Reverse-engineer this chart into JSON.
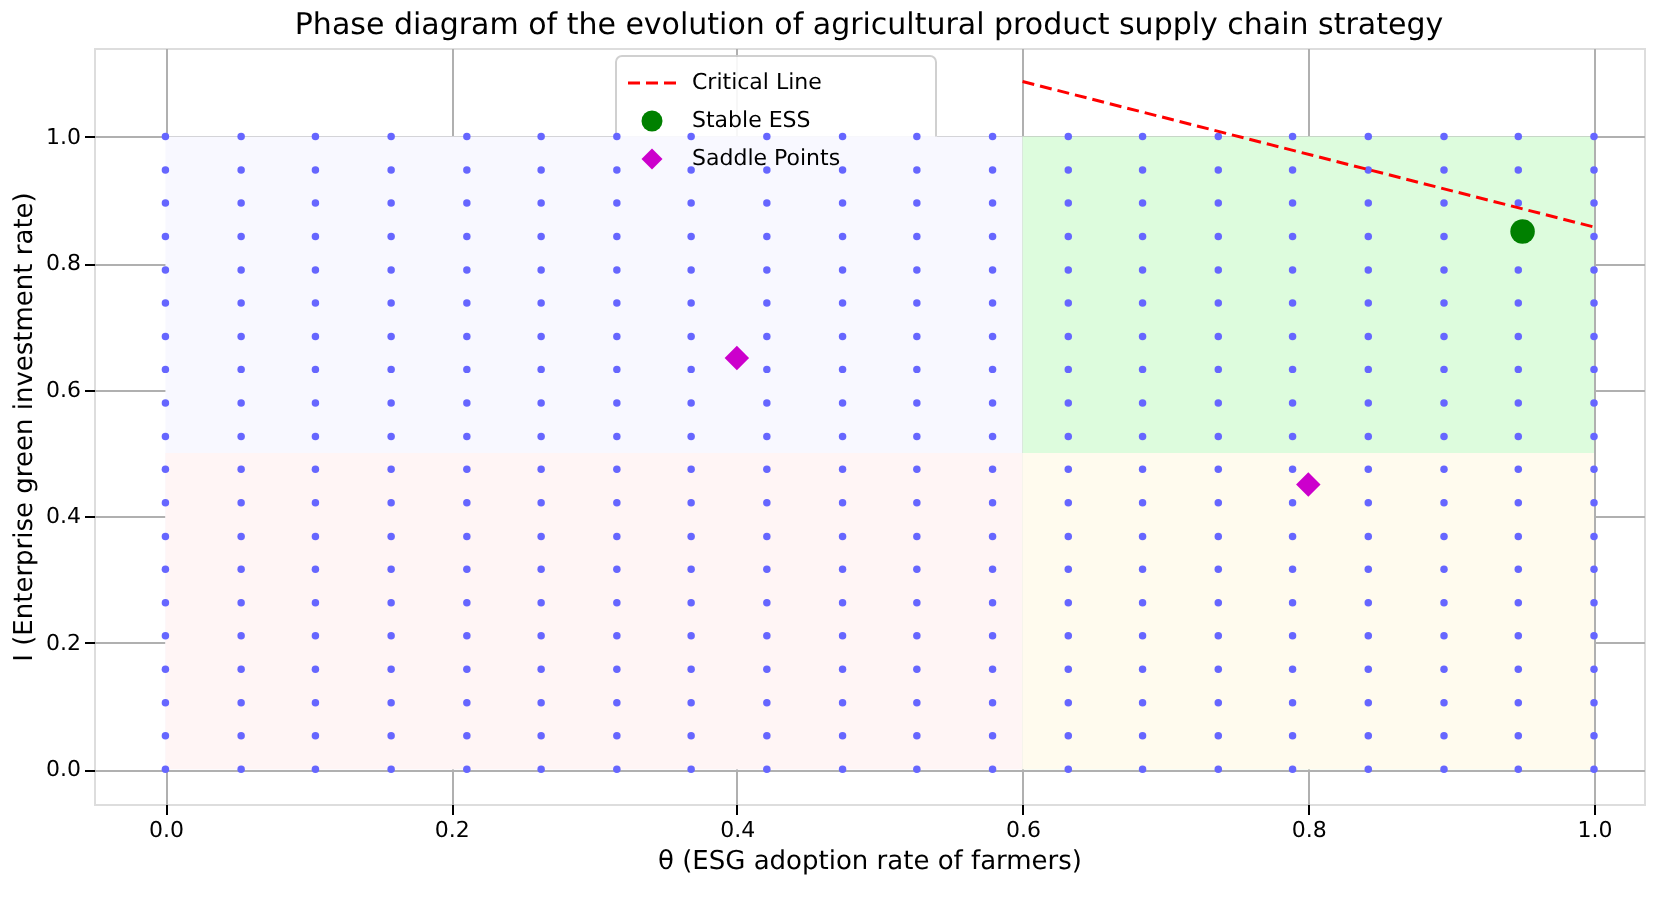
{
  "chart_data": {
    "type": "scatter",
    "title": "Phase diagram of the evolution of agricultural product supply chain strategy",
    "xlabel": "θ (ESG adoption rate of farmers)",
    "ylabel": "I (Enterprise green investment rate)",
    "xlim": [
      -0.05,
      1.035
    ],
    "ylim": [
      -0.055,
      1.14
    ],
    "xticks": [
      {
        "value": 0,
        "label": "0.0"
      },
      0.2,
      0.4,
      0.6,
      0.8,
      {
        "value": 1,
        "label": "1.0"
      }
    ],
    "yticks": [
      {
        "value": 0,
        "label": "0.0"
      },
      0.2,
      0.4,
      0.6,
      0.8,
      {
        "value": 1,
        "label": "1.0"
      }
    ],
    "grid": true,
    "legend": "top",
    "x": [
      0,
      0.053,
      0.105,
      0.158,
      0.211,
      0.263,
      0.316,
      0.368,
      0.421,
      0.474,
      0.526,
      0.579,
      0.632,
      0.684,
      0.737,
      0.789,
      0.842,
      0.895,
      0.947,
      1.0
    ],
    "series": [
      {
        "type": "area",
        "color": "#f8f8ff",
        "x": [
          0,
          0.6
        ],
        "values": [
          1,
          1
        ]
      },
      {
        "type": "area",
        "color": "#ddfcdd",
        "x": [
          0.6,
          1.0
        ],
        "values": [
          1,
          1
        ]
      },
      {
        "type": "area",
        "color": "#fff5f5",
        "x": [
          0,
          0.6
        ],
        "values": [
          0.5,
          0.5
        ]
      },
      {
        "type": "area",
        "color": "#fffbee",
        "x": [
          0.6,
          1.0
        ],
        "values": [
          0.5,
          0.5
        ]
      },
      {
        "color": "#6666ff",
        "values": [
          0,
          0,
          0,
          0,
          0,
          0,
          0,
          0,
          0,
          0,
          0,
          0,
          0,
          0,
          0,
          0,
          0,
          0,
          0,
          0
        ]
      },
      {
        "color": "#6666ff",
        "values": [
          0.053,
          0.053,
          0.053,
          0.053,
          0.053,
          0.053,
          0.053,
          0.053,
          0.053,
          0.053,
          0.053,
          0.053,
          0.053,
          0.053,
          0.053,
          0.053,
          0.053,
          0.053,
          0.053,
          0.053
        ]
      },
      {
        "color": "#6666ff",
        "values": [
          0.105,
          0.105,
          0.105,
          0.105,
          0.105,
          0.105,
          0.105,
          0.105,
          0.105,
          0.105,
          0.105,
          0.105,
          0.105,
          0.105,
          0.105,
          0.105,
          0.105,
          0.105,
          0.105,
          0.105
        ]
      },
      {
        "color": "#6666ff",
        "values": [
          0.158,
          0.158,
          0.158,
          0.158,
          0.158,
          0.158,
          0.158,
          0.158,
          0.158,
          0.158,
          0.158,
          0.158,
          0.158,
          0.158,
          0.158,
          0.158,
          0.158,
          0.158,
          0.158,
          0.158
        ]
      },
      {
        "color": "#6666ff",
        "values": [
          0.211,
          0.211,
          0.211,
          0.211,
          0.211,
          0.211,
          0.211,
          0.211,
          0.211,
          0.211,
          0.211,
          0.211,
          0.211,
          0.211,
          0.211,
          0.211,
          0.211,
          0.211,
          0.211,
          0.211
        ]
      },
      {
        "color": "#6666ff",
        "values": [
          0.263,
          0.263,
          0.263,
          0.263,
          0.263,
          0.263,
          0.263,
          0.263,
          0.263,
          0.263,
          0.263,
          0.263,
          0.263,
          0.263,
          0.263,
          0.263,
          0.263,
          0.263,
          0.263,
          0.263
        ]
      },
      {
        "color": "#6666ff",
        "values": [
          0.316,
          0.316,
          0.316,
          0.316,
          0.316,
          0.316,
          0.316,
          0.316,
          0.316,
          0.316,
          0.316,
          0.316,
          0.316,
          0.316,
          0.316,
          0.316,
          0.316,
          0.316,
          0.316,
          0.316
        ]
      },
      {
        "color": "#6666ff",
        "values": [
          0.368,
          0.368,
          0.368,
          0.368,
          0.368,
          0.368,
          0.368,
          0.368,
          0.368,
          0.368,
          0.368,
          0.368,
          0.368,
          0.368,
          0.368,
          0.368,
          0.368,
          0.368,
          0.368,
          0.368
        ]
      },
      {
        "color": "#6666ff",
        "values": [
          0.421,
          0.421,
          0.421,
          0.421,
          0.421,
          0.421,
          0.421,
          0.421,
          0.421,
          0.421,
          0.421,
          0.421,
          0.421,
          0.421,
          0.421,
          0.421,
          0.421,
          0.421,
          0.421,
          0.421
        ]
      },
      {
        "color": "#6666ff",
        "values": [
          0.474,
          0.474,
          0.474,
          0.474,
          0.474,
          0.474,
          0.474,
          0.474,
          0.474,
          0.474,
          0.474,
          0.474,
          0.474,
          0.474,
          0.474,
          0.474,
          0.474,
          0.474,
          0.474,
          0.474
        ]
      },
      {
        "color": "#6666ff",
        "values": [
          0.526,
          0.526,
          0.526,
          0.526,
          0.526,
          0.526,
          0.526,
          0.526,
          0.526,
          0.526,
          0.526,
          0.526,
          0.526,
          0.526,
          0.526,
          0.526,
          0.526,
          0.526,
          0.526,
          0.526
        ]
      },
      {
        "color": "#6666ff",
        "values": [
          0.579,
          0.579,
          0.579,
          0.579,
          0.579,
          0.579,
          0.579,
          0.579,
          0.579,
          0.579,
          0.579,
          0.579,
          0.579,
          0.579,
          0.579,
          0.579,
          0.579,
          0.579,
          0.579,
          0.579
        ]
      },
      {
        "color": "#6666ff",
        "values": [
          0.632,
          0.632,
          0.632,
          0.632,
          0.632,
          0.632,
          0.632,
          0.632,
          0.632,
          0.632,
          0.632,
          0.632,
          0.632,
          0.632,
          0.632,
          0.632,
          0.632,
          0.632,
          0.632,
          0.632
        ]
      },
      {
        "color": "#6666ff",
        "values": [
          0.684,
          0.684,
          0.684,
          0.684,
          0.684,
          0.684,
          0.684,
          0.684,
          0.684,
          0.684,
          0.684,
          0.684,
          0.684,
          0.684,
          0.684,
          0.684,
          0.684,
          0.684,
          0.684,
          0.684
        ]
      },
      {
        "color": "#6666ff",
        "values": [
          0.737,
          0.737,
          0.737,
          0.737,
          0.737,
          0.737,
          0.737,
          0.737,
          0.737,
          0.737,
          0.737,
          0.737,
          0.737,
          0.737,
          0.737,
          0.737,
          0.737,
          0.737,
          0.737,
          0.737
        ]
      },
      {
        "color": "#6666ff",
        "values": [
          0.789,
          0.789,
          0.789,
          0.789,
          0.789,
          0.789,
          0.789,
          0.789,
          0.789,
          0.789,
          0.789,
          0.789,
          0.789,
          0.789,
          0.789,
          0.789,
          0.789,
          0.789,
          0.789,
          0.789
        ]
      },
      {
        "color": "#6666ff",
        "values": [
          0.842,
          0.842,
          0.842,
          0.842,
          0.842,
          0.842,
          0.842,
          0.842,
          0.842,
          0.842,
          0.842,
          0.842,
          0.842,
          0.842,
          0.842,
          0.842,
          0.842,
          0.842,
          null,
          0.842
        ]
      },
      {
        "color": "#6666ff",
        "values": [
          0.895,
          0.895,
          0.895,
          0.895,
          0.895,
          0.895,
          0.895,
          0.895,
          0.895,
          0.895,
          0.895,
          0.895,
          0.895,
          0.895,
          0.895,
          0.895,
          0.895,
          0.895,
          0.895,
          0.895
        ]
      },
      {
        "color": "#6666ff",
        "values": [
          0.947,
          0.947,
          0.947,
          0.947,
          0.947,
          0.947,
          0.947,
          0.947,
          0.947,
          0.947,
          0.947,
          0.947,
          0.947,
          0.947,
          0.947,
          0.947,
          0.947,
          0.947,
          0.947,
          0.947
        ]
      },
      {
        "color": "#6666ff",
        "values": [
          1.0,
          1.0,
          1.0,
          1.0,
          1.0,
          1.0,
          1.0,
          1.0,
          1.0,
          1.0,
          1.0,
          1.0,
          1.0,
          1.0,
          1.0,
          1.0,
          1.0,
          1.0,
          1.0,
          1.0
        ]
      },
      {
        "type": "line",
        "name": "Critical Line",
        "color": "#ff0000",
        "line_style": "dashed",
        "marker": "none",
        "x": [
          0.6,
          1.0
        ],
        "values": [
          1.087,
          0.857
        ]
      },
      {
        "type": "scatter",
        "name": "Stable ESS",
        "color": "#008000",
        "marker": "circle",
        "x": [
          0.95
        ],
        "values": [
          0.85
        ]
      },
      {
        "type": "scatter",
        "name": "Saddle Points",
        "color": "#cc00cc",
        "marker": "diamond",
        "x": [
          0.4,
          0.8
        ],
        "values": [
          0.65,
          0.45
        ]
      }
    ]
  }
}
